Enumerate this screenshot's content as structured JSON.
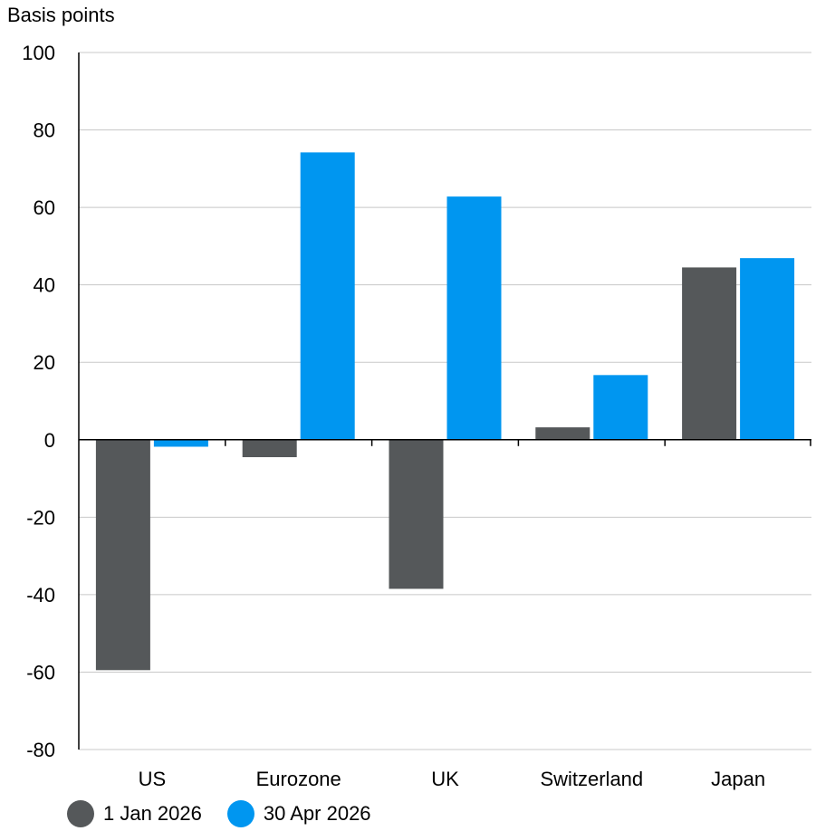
{
  "chart_data": {
    "type": "bar",
    "ylabel": "Basis points",
    "categories": [
      "US",
      "Eurozone",
      "UK",
      "Switzerland",
      "Japan"
    ],
    "series": [
      {
        "name": "1 Jan 2026",
        "color": "#55585a",
        "values": [
          -59.5,
          -4.5,
          -38.5,
          3.2,
          44.5
        ]
      },
      {
        "name": "30 Apr 2026",
        "color": "#0096f0",
        "values": [
          -1.8,
          74.2,
          62.8,
          16.7,
          46.9
        ]
      }
    ],
    "ylim": [
      -80,
      100
    ],
    "yticks": [
      100,
      80,
      60,
      40,
      20,
      0,
      -20,
      -40,
      -60,
      -80
    ],
    "grid": true,
    "legend_position": "bottom-left"
  }
}
